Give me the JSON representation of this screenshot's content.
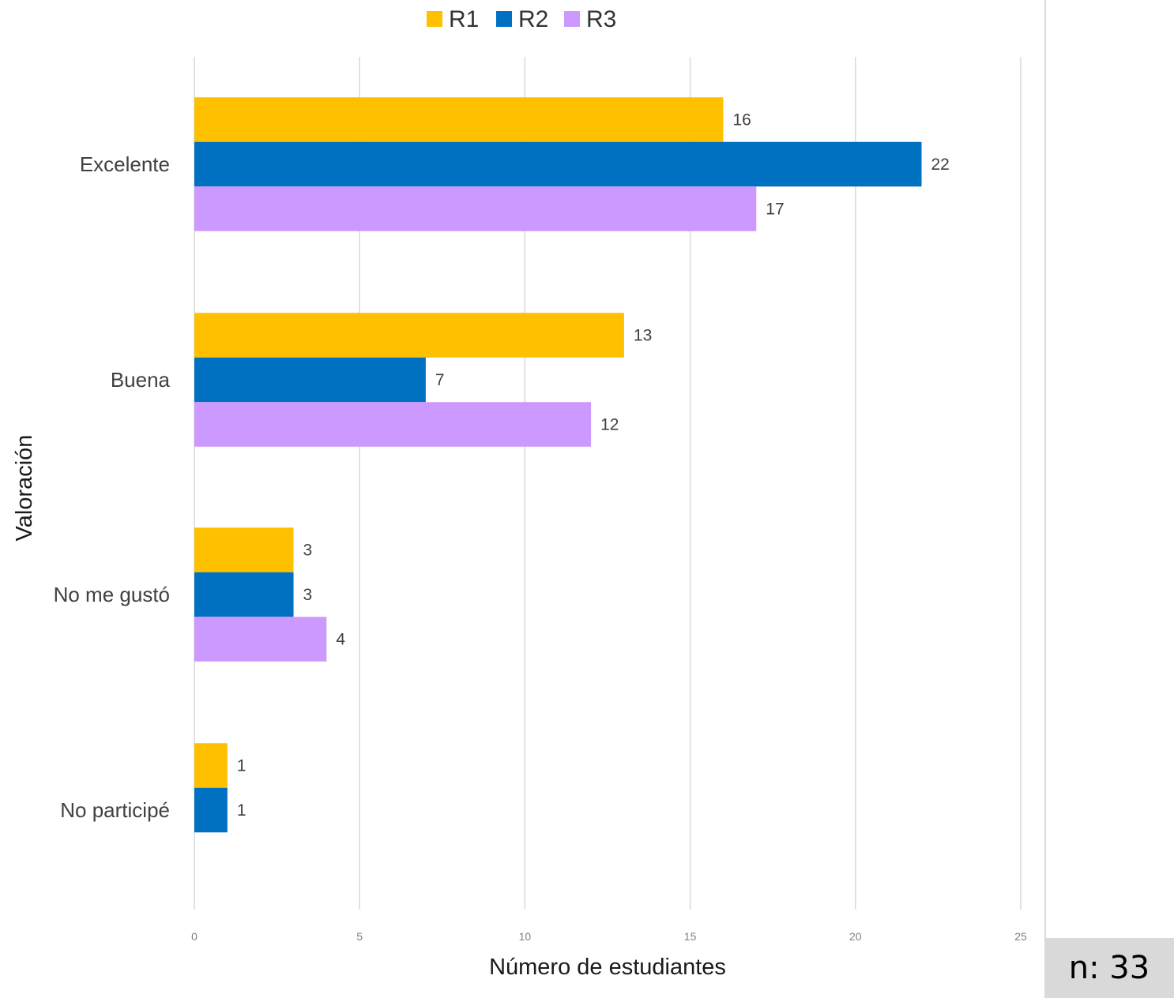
{
  "chart_data": {
    "type": "bar",
    "orientation": "horizontal",
    "categories": [
      "Excelente",
      "Buena",
      "No me gustó",
      "No participé"
    ],
    "series": [
      {
        "name": "R1",
        "color": "#FFC000",
        "values": [
          16,
          13,
          3,
          1
        ]
      },
      {
        "name": "R2",
        "color": "#0070C0",
        "values": [
          22,
          7,
          3,
          1
        ]
      },
      {
        "name": "R3",
        "color": "#CC99FF",
        "values": [
          17,
          12,
          4,
          null
        ]
      }
    ],
    "xlabel": "Número de estudiantes",
    "ylabel": "Valoración",
    "xlim": [
      0,
      25
    ],
    "xticks": [
      0,
      5,
      10,
      15,
      20,
      25
    ],
    "grid": true,
    "legend": "top-center"
  },
  "note": "n: 33"
}
